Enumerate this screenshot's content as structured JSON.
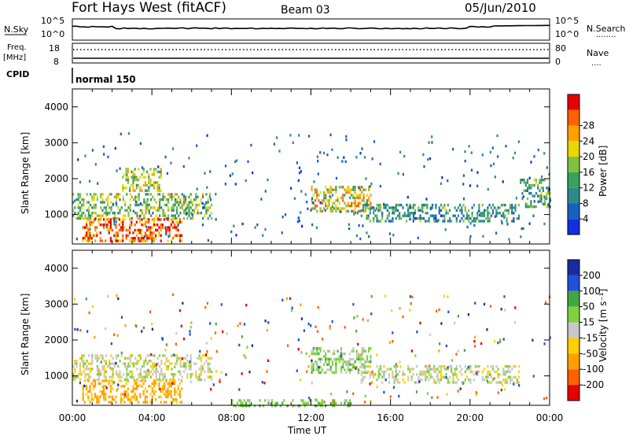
{
  "header": {
    "station": "Fort Hays West (fitACF)",
    "beam": "Beam 03",
    "date": "05/Jun/2010"
  },
  "noise_panel": {
    "left_label": "N.Sky",
    "right_label": "N.Search",
    "right_legend": "........",
    "ticks": [
      "10^5",
      "10^0"
    ]
  },
  "freq_panel": {
    "left_label_line1": "Freq.",
    "left_label_line2": "[MHz]",
    "left_ticks": [
      "18",
      "8"
    ],
    "right_label": "Nave",
    "right_legend": "....",
    "right_ticks": [
      "80",
      "0"
    ]
  },
  "cpid_panel": {
    "label": "CPID",
    "value": "normal 150"
  },
  "colors": {
    "power_scale": [
      "#1030e0",
      "#1860c0",
      "#2e8a8a",
      "#3aa060",
      "#80c040",
      "#e8d800",
      "#ffa000",
      "#ff6000",
      "#e80000"
    ],
    "velocity_scale": [
      "#1a2aa0",
      "#2050d8",
      "#40a840",
      "#80d040",
      "#c8c8c8",
      "#ffd000",
      "#ffa000",
      "#ff6000",
      "#e80000"
    ]
  },
  "chart_data": [
    {
      "type": "heatmap",
      "title": "Power",
      "ylabel": "Slant Range [km]",
      "xlabel": "Time UT",
      "x_ticks": [
        "00:00",
        "04:00",
        "08:00",
        "12:00",
        "16:00",
        "20:00",
        "00:00"
      ],
      "y_ticks": [
        1000,
        2000,
        3000,
        4000
      ],
      "ylim": [
        180,
        4500
      ],
      "xlim_hours": [
        0,
        24
      ],
      "colorbar": {
        "label": "Power [dB]",
        "ticks": [
          4,
          8,
          12,
          16,
          20,
          24,
          28
        ],
        "range": [
          0,
          30
        ]
      },
      "echo_regions": [
        {
          "start_h": 0.0,
          "end_h": 7.0,
          "range_km": [
            900,
            1600
          ],
          "power_db": 14
        },
        {
          "start_h": 0.5,
          "end_h": 5.5,
          "range_km": [
            300,
            900
          ],
          "power_db": 24
        },
        {
          "start_h": 2.5,
          "end_h": 4.5,
          "range_km": [
            1700,
            2300
          ],
          "power_db": 16
        },
        {
          "start_h": 12.0,
          "end_h": 15.0,
          "range_km": [
            1100,
            1800
          ],
          "power_db": 18
        },
        {
          "start_h": 14.5,
          "end_h": 22.5,
          "range_km": [
            800,
            1300
          ],
          "power_db": 10
        },
        {
          "start_h": 22.5,
          "end_h": 24.0,
          "range_km": [
            1200,
            2000
          ],
          "power_db": 12
        }
      ]
    },
    {
      "type": "heatmap",
      "title": "Velocity",
      "ylabel": "Slant Range [km]",
      "xlabel": "Time UT",
      "x_ticks": [
        "00:00",
        "04:00",
        "08:00",
        "12:00",
        "16:00",
        "20:00",
        "00:00"
      ],
      "y_ticks": [
        1000,
        2000,
        3000,
        4000
      ],
      "ylim": [
        180,
        4500
      ],
      "xlim_hours": [
        0,
        24
      ],
      "colorbar": {
        "label": "Velocity [m s⁻¹]",
        "ticks": [
          200,
          100,
          50,
          15,
          -15,
          -50,
          -100,
          -200
        ],
        "range": [
          -250,
          250
        ]
      },
      "echo_regions": [
        {
          "start_h": 0.0,
          "end_h": 7.0,
          "range_km": [
            900,
            1600
          ],
          "velocity": 0
        },
        {
          "start_h": 0.5,
          "end_h": 5.5,
          "range_km": [
            300,
            900
          ],
          "velocity": -60
        },
        {
          "start_h": 12.0,
          "end_h": 15.0,
          "range_km": [
            1100,
            1800
          ],
          "velocity": 30
        },
        {
          "start_h": 14.5,
          "end_h": 22.5,
          "range_km": [
            800,
            1300
          ],
          "velocity": 0
        },
        {
          "start_h": 8.0,
          "end_h": 14.0,
          "range_km": [
            180,
            350
          ],
          "velocity": 40
        }
      ]
    }
  ]
}
